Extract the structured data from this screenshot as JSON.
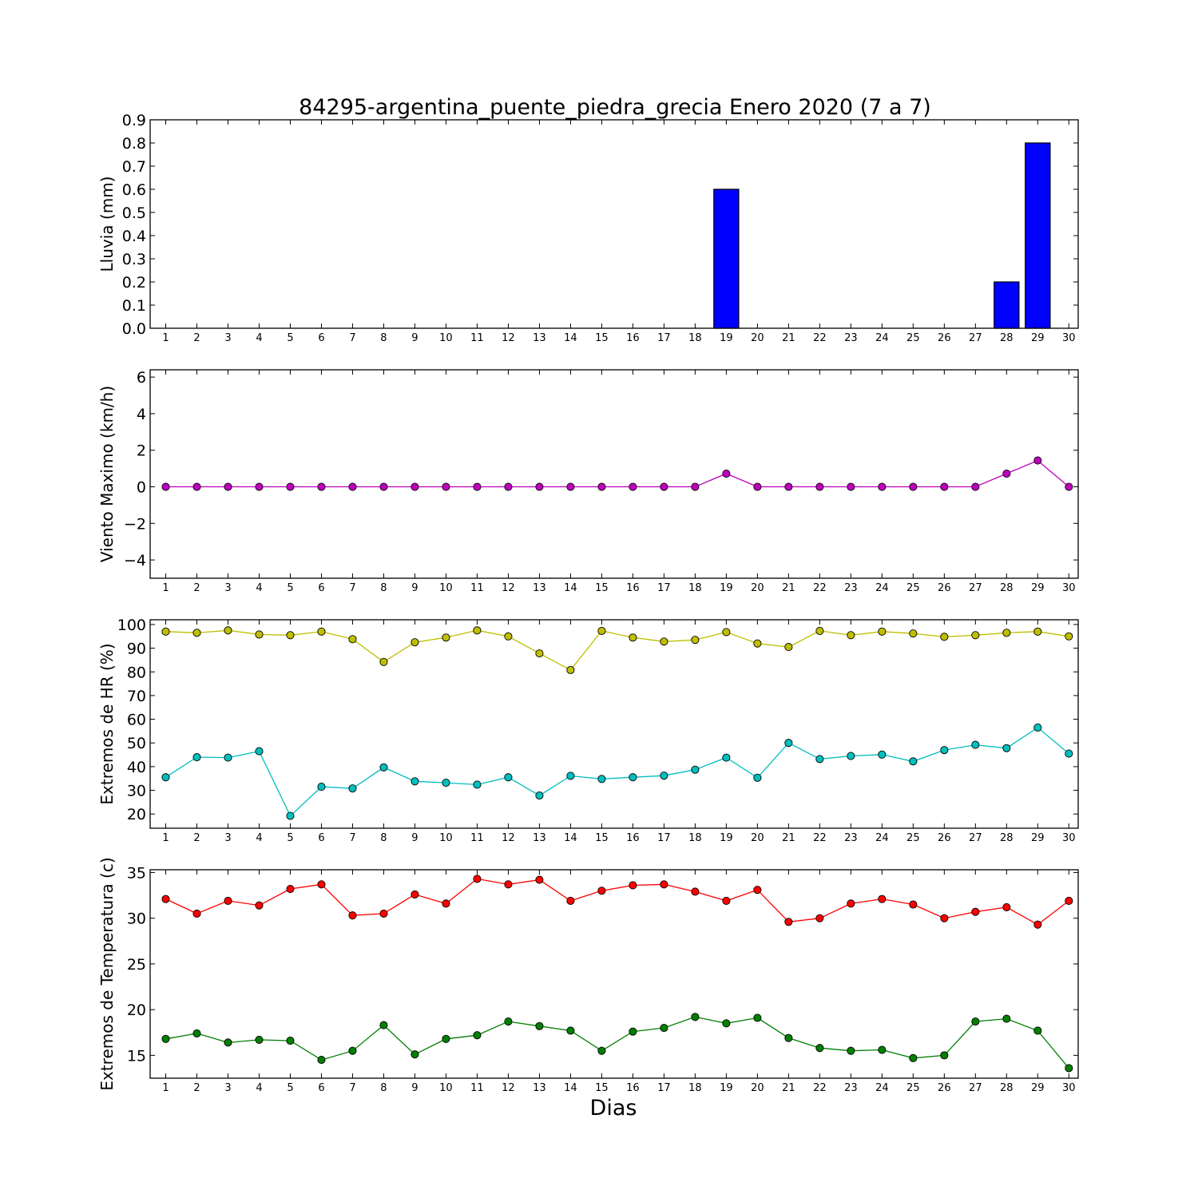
{
  "figure": {
    "title": "84295-argentina_puente_piedra_grecia Enero 2020  (7 a 7)",
    "xlabel": "Dias"
  },
  "chart_data": [
    {
      "type": "bar",
      "ylabel": "Lluvia (mm)",
      "categories": [
        1,
        2,
        3,
        4,
        5,
        6,
        7,
        8,
        9,
        10,
        11,
        12,
        13,
        14,
        15,
        16,
        17,
        18,
        19,
        20,
        21,
        22,
        23,
        24,
        25,
        26,
        27,
        28,
        29,
        30
      ],
      "values": [
        0,
        0,
        0,
        0,
        0,
        0,
        0,
        0,
        0,
        0,
        0,
        0,
        0,
        0,
        0,
        0,
        0,
        0,
        0.6,
        0,
        0,
        0,
        0,
        0,
        0,
        0,
        0,
        0.2,
        0.8,
        0
      ],
      "ylim": [
        0,
        0.9
      ],
      "yticks": [
        "0.0",
        "0.1",
        "0.2",
        "0.3",
        "0.4",
        "0.5",
        "0.6",
        "0.7",
        "0.8",
        "0.9"
      ],
      "color": "#0000ff"
    },
    {
      "type": "line",
      "ylabel": "Viento Maximo (km/h)",
      "categories": [
        1,
        2,
        3,
        4,
        5,
        6,
        7,
        8,
        9,
        10,
        11,
        12,
        13,
        14,
        15,
        16,
        17,
        18,
        19,
        20,
        21,
        22,
        23,
        24,
        25,
        26,
        27,
        28,
        29,
        30
      ],
      "series": [
        {
          "values": [
            0,
            0,
            0,
            0,
            0,
            0,
            0,
            0,
            0,
            0,
            0,
            0,
            0,
            0,
            0,
            0,
            0,
            0,
            0.72,
            0,
            0,
            0,
            0,
            0,
            0,
            0,
            0,
            0.72,
            1.44,
            0
          ],
          "color": "#bf00bf"
        }
      ],
      "ylim": [
        -5,
        6.4
      ],
      "yticks": [
        "−4",
        "−2",
        "0",
        "2",
        "4",
        "6"
      ]
    },
    {
      "type": "line",
      "ylabel": "Extremos de HR (%)",
      "categories": [
        1,
        2,
        3,
        4,
        5,
        6,
        7,
        8,
        9,
        10,
        11,
        12,
        13,
        14,
        15,
        16,
        17,
        18,
        19,
        20,
        21,
        22,
        23,
        24,
        25,
        26,
        27,
        28,
        29,
        30
      ],
      "series": [
        {
          "values": [
            97,
            96.5,
            97.5,
            95.8,
            95.5,
            97,
            93.8,
            84.2,
            92.5,
            94.5,
            97.5,
            95,
            87.8,
            80.8,
            97.3,
            94.5,
            92.8,
            93.5,
            96.8,
            92,
            90.5,
            97.3,
            95.5,
            97,
            96.2,
            94.8,
            95.5,
            96.5,
            97,
            95
          ],
          "color": "#bfbf00"
        },
        {
          "values": [
            35.5,
            44,
            43.8,
            46.5,
            19.2,
            31.5,
            30.8,
            39.7,
            33.8,
            33.2,
            32.4,
            35.5,
            27.8,
            36.1,
            34.8,
            35.5,
            36.2,
            38.7,
            43.8,
            35.3,
            50,
            43.2,
            44.5,
            45.1,
            42.2,
            47,
            49.2,
            47.8,
            56.5,
            45.5
          ],
          "color": "#00bfbf"
        }
      ],
      "ylim": [
        14,
        102
      ],
      "yticks": [
        "20",
        "30",
        "40",
        "50",
        "60",
        "70",
        "80",
        "90",
        "100"
      ]
    },
    {
      "type": "line",
      "ylabel": "Extremos de Temperatura (c)",
      "categories": [
        1,
        2,
        3,
        4,
        5,
        6,
        7,
        8,
        9,
        10,
        11,
        12,
        13,
        14,
        15,
        16,
        17,
        18,
        19,
        20,
        21,
        22,
        23,
        24,
        25,
        26,
        27,
        28,
        29,
        30
      ],
      "series": [
        {
          "values": [
            32.1,
            30.5,
            31.9,
            31.4,
            33.2,
            33.7,
            30.3,
            30.5,
            32.6,
            31.6,
            34.3,
            33.7,
            34.2,
            31.9,
            33,
            33.6,
            33.7,
            32.9,
            31.9,
            33.1,
            29.6,
            30,
            31.6,
            32.1,
            31.5,
            30,
            30.7,
            31.2,
            29.3,
            31.9
          ],
          "color": "#ff0000"
        },
        {
          "values": [
            16.8,
            17.4,
            16.4,
            16.7,
            16.6,
            14.5,
            15.5,
            18.3,
            15.1,
            16.8,
            17.2,
            18.7,
            18.2,
            17.7,
            15.5,
            17.6,
            18,
            19.2,
            18.5,
            19.1,
            16.9,
            15.8,
            15.5,
            15.6,
            14.7,
            15,
            18.7,
            19,
            17.7,
            13.6
          ],
          "color": "#008000"
        }
      ],
      "ylim": [
        12.5,
        35.3
      ],
      "yticks": [
        "15",
        "20",
        "25",
        "30",
        "35"
      ]
    }
  ]
}
